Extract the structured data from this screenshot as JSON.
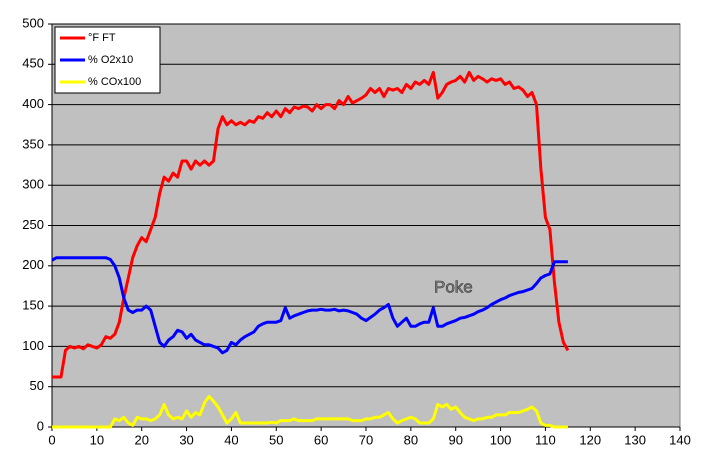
{
  "chart_data": {
    "type": "line",
    "x": [
      0,
      1,
      2,
      3,
      4,
      5,
      6,
      7,
      8,
      9,
      10,
      11,
      12,
      13,
      14,
      15,
      16,
      17,
      18,
      19,
      20,
      21,
      22,
      23,
      24,
      25,
      26,
      27,
      28,
      29,
      30,
      31,
      32,
      33,
      34,
      35,
      36,
      37,
      38,
      39,
      40,
      41,
      42,
      43,
      44,
      45,
      46,
      47,
      48,
      49,
      50,
      51,
      52,
      53,
      54,
      55,
      56,
      57,
      58,
      59,
      60,
      61,
      62,
      63,
      64,
      65,
      66,
      67,
      68,
      69,
      70,
      71,
      72,
      73,
      74,
      75,
      76,
      77,
      78,
      79,
      80,
      81,
      82,
      83,
      84,
      85,
      86,
      87,
      88,
      89,
      90,
      91,
      92,
      93,
      94,
      95,
      96,
      97,
      98,
      99,
      100,
      101,
      102,
      103,
      104,
      105,
      106,
      107,
      108,
      109,
      110,
      111,
      112,
      113,
      114,
      115
    ],
    "series": [
      {
        "name": "°F FT",
        "color": "#ff0000",
        "values": [
          62,
          62,
          62,
          95,
          100,
          98,
          100,
          97,
          102,
          100,
          98,
          102,
          112,
          110,
          115,
          130,
          160,
          185,
          210,
          225,
          235,
          230,
          245,
          260,
          290,
          310,
          305,
          315,
          310,
          330,
          330,
          320,
          330,
          325,
          330,
          325,
          330,
          370,
          385,
          375,
          380,
          375,
          378,
          375,
          380,
          378,
          385,
          383,
          390,
          385,
          392,
          385,
          395,
          390,
          397,
          395,
          398,
          397,
          392,
          400,
          395,
          400,
          400,
          395,
          405,
          400,
          410,
          402,
          405,
          408,
          412,
          420,
          415,
          420,
          410,
          420,
          418,
          420,
          415,
          425,
          420,
          428,
          425,
          430,
          425,
          440,
          408,
          415,
          425,
          428,
          430,
          435,
          428,
          440,
          430,
          435,
          432,
          428,
          432,
          430,
          432,
          425,
          428,
          420,
          422,
          418,
          410,
          415,
          400,
          320,
          260,
          245,
          180,
          130,
          105,
          95
        ]
      },
      {
        "name": "% O2x10",
        "color": "#0000ff",
        "values": [
          207,
          210,
          210,
          210,
          210,
          210,
          210,
          210,
          210,
          210,
          210,
          210,
          210,
          208,
          200,
          185,
          160,
          145,
          142,
          145,
          145,
          150,
          145,
          125,
          105,
          100,
          108,
          112,
          120,
          118,
          110,
          115,
          108,
          105,
          102,
          102,
          100,
          98,
          92,
          95,
          105,
          102,
          108,
          112,
          115,
          118,
          125,
          128,
          130,
          130,
          130,
          132,
          148,
          135,
          138,
          140,
          142,
          144,
          145,
          145,
          146,
          145,
          145,
          146,
          144,
          145,
          144,
          142,
          140,
          135,
          132,
          136,
          140,
          145,
          148,
          152,
          135,
          125,
          130,
          135,
          125,
          125,
          128,
          130,
          130,
          148,
          125,
          125,
          128,
          130,
          132,
          135,
          136,
          138,
          140,
          143,
          145,
          148,
          152,
          155,
          158,
          160,
          163,
          165,
          167,
          168,
          170,
          172,
          178,
          185,
          188,
          190,
          205,
          205,
          205,
          205
        ]
      },
      {
        "name": "% COx100",
        "color": "#ffff00",
        "values": [
          0,
          0,
          0,
          0,
          0,
          0,
          0,
          0,
          0,
          0,
          0,
          0,
          0,
          0,
          10,
          8,
          12,
          5,
          2,
          12,
          10,
          10,
          8,
          10,
          15,
          28,
          15,
          10,
          12,
          10,
          20,
          12,
          18,
          15,
          30,
          38,
          32,
          25,
          15,
          5,
          10,
          18,
          5,
          5,
          5,
          5,
          5,
          5,
          5,
          6,
          5,
          8,
          8,
          8,
          10,
          8,
          8,
          8,
          8,
          10,
          10,
          10,
          10,
          10,
          10,
          10,
          10,
          8,
          8,
          8,
          10,
          10,
          12,
          12,
          15,
          18,
          10,
          5,
          8,
          10,
          12,
          10,
          5,
          5,
          5,
          10,
          28,
          25,
          28,
          22,
          25,
          18,
          12,
          10,
          8,
          10,
          10,
          12,
          12,
          15,
          15,
          15,
          18,
          18,
          18,
          20,
          22,
          25,
          20,
          5,
          2,
          2,
          0,
          0,
          0,
          0
        ]
      }
    ],
    "annotation": "Poke",
    "xlim": [
      0,
      140
    ],
    "xticks": [
      0,
      10,
      20,
      30,
      40,
      50,
      60,
      70,
      80,
      90,
      100,
      110,
      120,
      130,
      140
    ],
    "ylim": [
      0,
      500
    ],
    "yticks": [
      0,
      50,
      100,
      150,
      200,
      250,
      300,
      350,
      400,
      450,
      500
    ],
    "grid": true,
    "legend": "upper left",
    "background": "#c0c0c0"
  }
}
